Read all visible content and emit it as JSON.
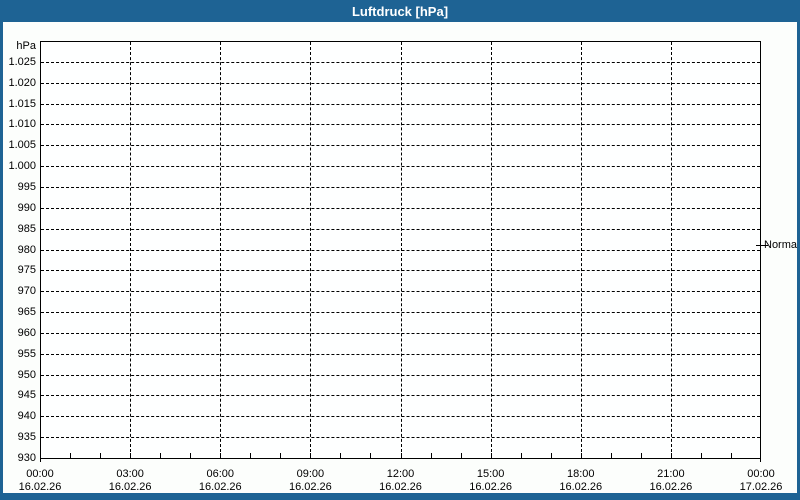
{
  "colors": {
    "titlebar_blue": "#1e6394",
    "window_background": "#fcfefc",
    "plot_background": "#feffff",
    "grid_and_text": "#000000",
    "title_text": "#ffffff"
  },
  "chart_data": {
    "type": "line",
    "title": "Luftdruck [hPa]",
    "ylabel": "hPa",
    "xlabel": "",
    "ylim": [
      930,
      1030
    ],
    "grid": "dashed",
    "legend": "none",
    "series": [],
    "y_ticks": [
      {
        "label": "1.025",
        "value": 1025
      },
      {
        "label": "1.020",
        "value": 1020
      },
      {
        "label": "1.015",
        "value": 1015
      },
      {
        "label": "1.010",
        "value": 1010
      },
      {
        "label": "1.005",
        "value": 1005
      },
      {
        "label": "1.000",
        "value": 1000
      },
      {
        "label": "995",
        "value": 995
      },
      {
        "label": "990",
        "value": 990
      },
      {
        "label": "985",
        "value": 985
      },
      {
        "label": "980",
        "value": 980
      },
      {
        "label": "975",
        "value": 975
      },
      {
        "label": "970",
        "value": 970
      },
      {
        "label": "965",
        "value": 965
      },
      {
        "label": "960",
        "value": 960
      },
      {
        "label": "955",
        "value": 955
      },
      {
        "label": "950",
        "value": 950
      },
      {
        "label": "945",
        "value": 945
      },
      {
        "label": "940",
        "value": 940
      },
      {
        "label": "935",
        "value": 935
      },
      {
        "label": "930",
        "value": 930
      }
    ],
    "x_axis": {
      "range_hours": [
        0,
        24
      ],
      "major_step_hours": 3,
      "minor_step_hours": 1,
      "ticks": [
        {
          "hours": 0,
          "time": "00:00",
          "date": "16.02.26"
        },
        {
          "hours": 3,
          "time": "03:00",
          "date": "16.02.26"
        },
        {
          "hours": 6,
          "time": "06:00",
          "date": "16.02.26"
        },
        {
          "hours": 9,
          "time": "09:00",
          "date": "16.02.26"
        },
        {
          "hours": 12,
          "time": "12:00",
          "date": "16.02.26"
        },
        {
          "hours": 15,
          "time": "15:00",
          "date": "16.02.26"
        },
        {
          "hours": 18,
          "time": "18:00",
          "date": "16.02.26"
        },
        {
          "hours": 21,
          "time": "21:00",
          "date": "16.02.26"
        },
        {
          "hours": 24,
          "time": "00:00",
          "date": "17.02.26"
        }
      ]
    },
    "annotations": [
      {
        "label": "Normal",
        "value_hpa": 981,
        "side": "right"
      }
    ]
  }
}
